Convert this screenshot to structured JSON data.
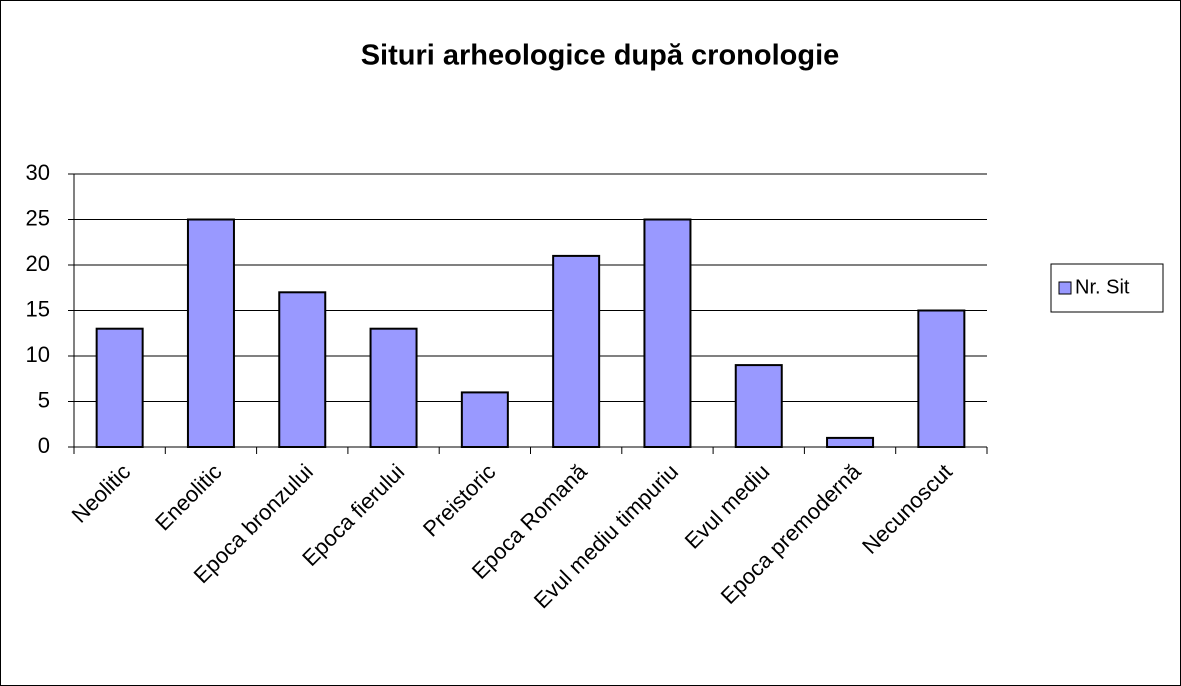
{
  "chart_data": {
    "type": "bar",
    "title": "Situri arheologice după cronologie",
    "categories": [
      "Neolitic",
      "Eneolitic",
      "Epoca bronzului",
      "Epoca fierului",
      "Preistoric",
      "Epoca Romană",
      "Evul mediu timpuriu",
      "Evul mediu",
      "Epoca premodernă",
      "Necunoscut"
    ],
    "series": [
      {
        "name": "Nr. Sit",
        "color": "#9999ff",
        "values": [
          13,
          25,
          17,
          13,
          6,
          21,
          25,
          9,
          1,
          15
        ]
      }
    ],
    "ylim": [
      0,
      30
    ],
    "yticks": [
      0,
      5,
      10,
      15,
      20,
      25,
      30
    ],
    "grid": true,
    "legend": "right"
  }
}
